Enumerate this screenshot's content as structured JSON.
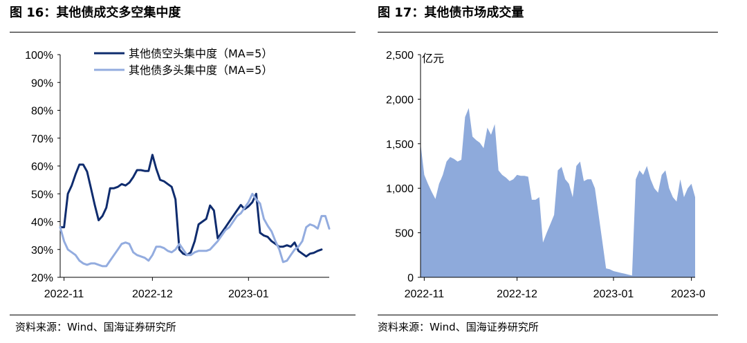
{
  "fig16": {
    "title": "图 16：其他债成交多空集中度",
    "source": "资料来源：Wind、国海证券研究所"
  },
  "fig17": {
    "title": "图 17：其他债市场成交量",
    "source": "资料来源：Wind、国海证券研究所"
  },
  "chart_data": [
    {
      "type": "line",
      "title": "图 16：其他债成交多空集中度",
      "xlabel": "",
      "ylabel": "",
      "ylim": [
        20,
        100
      ],
      "y_ticks": [
        "100%",
        "90%",
        "80%",
        "70%",
        "60%",
        "50%",
        "40%",
        "30%",
        "20%"
      ],
      "x_ticks": [
        "2022-11",
        "2022-12",
        "2023-01"
      ],
      "legend_position": "top",
      "grid": false,
      "x": [
        0,
        1,
        2,
        3,
        4,
        5,
        6,
        7,
        8,
        9,
        10,
        11,
        12,
        13,
        14,
        15,
        16,
        17,
        18,
        19,
        20,
        21,
        22,
        23,
        24,
        25,
        26,
        27,
        28,
        29,
        30,
        31,
        32,
        33,
        34,
        35,
        36,
        37,
        38,
        39,
        40,
        41,
        42,
        43,
        44,
        45,
        46,
        47,
        48,
        49,
        50,
        51,
        52,
        53,
        54,
        55,
        56,
        57,
        58,
        59,
        60,
        61,
        62,
        63,
        64,
        65,
        66,
        67,
        68,
        69,
        70
      ],
      "x_tick_positions": [
        1,
        24,
        49
      ],
      "series": [
        {
          "name": "其他债空头集中度（MA=5）",
          "color": "#0f2c6e",
          "values": [
            38,
            38,
            50,
            53,
            57,
            60.5,
            60.5,
            58,
            52,
            46,
            40.5,
            42,
            45,
            52,
            52,
            52.5,
            53.5,
            53,
            54,
            56,
            58.5,
            58.5,
            58.2,
            58.2,
            64,
            59,
            55,
            54.5,
            53.5,
            52.5,
            48,
            30,
            28.5,
            28,
            29,
            33,
            39,
            40,
            41,
            45.8,
            44,
            34,
            36,
            38,
            40,
            42,
            44,
            46,
            44.5,
            45.5,
            47,
            50,
            36,
            35,
            34.5,
            33,
            32,
            31,
            31,
            31.5,
            31,
            32.5,
            29.5,
            28.5,
            27.5,
            28.5,
            28.8,
            29.5,
            30,
            null,
            null
          ]
        },
        {
          "name": "其他债多头集中度（MA=5）",
          "color": "#93acdf",
          "values": [
            38,
            33,
            30,
            29,
            28,
            26,
            25,
            24.5,
            25,
            25,
            24.5,
            24,
            24,
            26,
            28,
            30,
            32,
            32.5,
            32,
            29,
            28,
            27.5,
            27,
            26,
            28,
            31,
            31,
            30.5,
            29.5,
            29,
            30,
            32,
            30,
            28,
            28,
            29,
            29.5,
            29.5,
            29.5,
            30,
            31.5,
            33,
            35,
            37,
            38,
            40,
            42,
            43,
            45,
            47,
            50,
            48,
            46.5,
            41,
            38.5,
            36.5,
            33,
            30,
            25.5,
            26,
            28,
            30,
            31,
            33,
            38,
            39,
            38.5,
            37.5,
            42,
            42,
            37.5
          ]
        }
      ]
    },
    {
      "type": "area",
      "title": "图 17：其他债市场成交量",
      "xlabel": "",
      "ylabel": "亿元",
      "ylim": [
        0,
        2500
      ],
      "y_ticks": [
        "2,500",
        "2,000",
        "1,500",
        "1,000",
        "500",
        "0"
      ],
      "x_ticks": [
        "2022-11",
        "2022-12",
        "2023-01",
        "2023-0"
      ],
      "legend_position": "none",
      "grid": false,
      "color": "#8eaadb",
      "x": [
        0,
        1,
        2,
        3,
        4,
        5,
        6,
        7,
        8,
        9,
        10,
        11,
        12,
        13,
        14,
        15,
        16,
        17,
        18,
        19,
        20,
        21,
        22,
        23,
        24,
        25,
        26,
        27,
        28,
        29,
        30,
        31,
        32,
        33,
        34,
        35,
        36,
        37,
        38,
        39,
        40,
        41,
        42,
        43,
        44,
        45,
        46,
        47,
        48,
        49,
        50,
        51,
        52,
        53,
        54,
        55,
        56,
        57,
        58,
        59,
        60,
        61,
        62,
        63,
        64,
        65,
        66,
        67,
        68,
        69,
        70,
        71,
        72,
        73,
        74
      ],
      "x_tick_positions": [
        1,
        26,
        52,
        73
      ],
      "series": [
        {
          "name": "",
          "values": [
            1500,
            1150,
            1050,
            960,
            880,
            1050,
            1150,
            1300,
            1350,
            1330,
            1300,
            1320,
            1800,
            1900,
            1580,
            1540,
            1510,
            1450,
            1680,
            1600,
            1720,
            1200,
            1150,
            1120,
            1080,
            1100,
            1150,
            1140,
            1140,
            1130,
            870,
            870,
            900,
            390,
            500,
            600,
            700,
            1200,
            1240,
            1100,
            1050,
            900,
            1250,
            1300,
            1080,
            1100,
            1100,
            1000,
            700,
            400,
            100,
            90,
            70,
            60,
            50,
            40,
            30,
            20,
            1100,
            1200,
            1150,
            1250,
            1100,
            1000,
            950,
            1150,
            1200,
            1000,
            900,
            850,
            1100,
            900,
            1000,
            1050,
            900
          ]
        }
      ]
    }
  ]
}
